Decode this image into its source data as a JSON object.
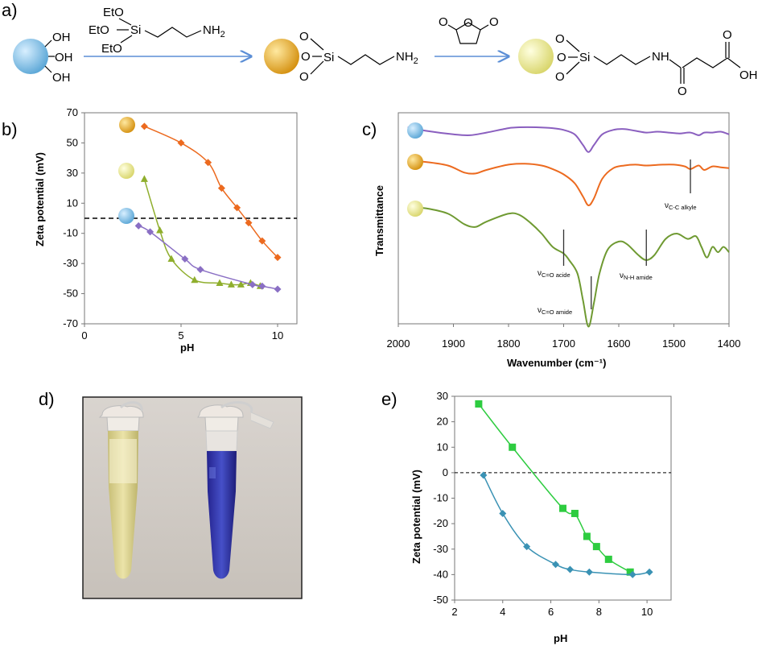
{
  "panel_labels": {
    "a": "a)",
    "b": "b)",
    "c": "c)",
    "d": "d)",
    "e": "e)"
  },
  "scheme": {
    "oh": "OH",
    "reagent_aptes": {
      "eto": "EtO",
      "si": "Si",
      "nh2": "NH",
      "sub2": "2"
    },
    "intermediate": {
      "o": "O",
      "si": "Si",
      "nh2": "NH",
      "sub2": "2"
    },
    "reagent_anhydride": {
      "o": "O"
    },
    "product": {
      "o": "O",
      "si": "Si",
      "nh": "NH",
      "oh": "OH"
    }
  },
  "photo_description": "",
  "colors": {
    "bare_particle": "#7bbde6",
    "amine_particle": "#e0a31e",
    "carboxyl_particle": "#ece98a",
    "arrow": "#5b8ed6",
    "orange_series": "#ec6a1f",
    "green_series": "#8fae2d",
    "purple_series": "#8a6fc4",
    "ftir_purple": "#8a5fbf",
    "ftir_orange": "#ec6a1f",
    "ftir_green": "#6f9a32",
    "e_green": "#2ecc40",
    "e_teal": "#3a92b4"
  },
  "chart_data": [
    {
      "id": "b",
      "type": "scatter",
      "xlabel": "pH",
      "ylabel": "Zeta potential (mV)",
      "xlim": [
        0,
        11
      ],
      "ylim": [
        -70,
        70
      ],
      "xticks": [
        0,
        5,
        10
      ],
      "yticks": [
        70,
        50,
        30,
        10,
        -10,
        -30,
        -50,
        -70
      ],
      "zero_line": "dashed",
      "legend": "particle icons at left of each series",
      "series": [
        {
          "marker": "diamond",
          "color": "#ec6a1f",
          "x": [
            3.1,
            5.0,
            6.4,
            7.1,
            7.9,
            8.5,
            9.2,
            10.0
          ],
          "y": [
            61,
            50,
            37,
            20,
            7,
            -3,
            -15,
            -26
          ]
        },
        {
          "marker": "triangle",
          "color": "#8fae2d",
          "x": [
            3.1,
            3.9,
            4.5,
            5.7,
            7.0,
            7.6,
            8.1,
            8.6,
            9.1
          ],
          "y": [
            26,
            -8,
            -27,
            -41,
            -43,
            -44,
            -44,
            -43,
            -45
          ]
        },
        {
          "marker": "diamond",
          "color": "#8a6fc4",
          "x": [
            2.8,
            3.4,
            5.2,
            6.0,
            8.7,
            9.2,
            10.0
          ],
          "y": [
            -5,
            -9,
            -27,
            -34,
            -44,
            -45,
            -47
          ]
        }
      ]
    },
    {
      "id": "c",
      "type": "line",
      "xlabel": "Wavenumber (cm⁻¹)",
      "ylabel": "Transmittance",
      "xlim": [
        2000,
        1400
      ],
      "xticks": [
        2000,
        1900,
        1800,
        1700,
        1600,
        1500,
        1400
      ],
      "series": [
        {
          "color": "#8a5fbf",
          "points": [
            [
              1983,
              0.0
            ],
            [
              1950,
              -0.04
            ],
            [
              1900,
              -0.08
            ],
            [
              1870,
              -0.09
            ],
            [
              1840,
              -0.06
            ],
            [
              1800,
              -0.01
            ],
            [
              1780,
              0.0
            ],
            [
              1750,
              0.0
            ],
            [
              1720,
              -0.01
            ],
            [
              1700,
              -0.03
            ],
            [
              1680,
              -0.08
            ],
            [
              1665,
              -0.2
            ],
            [
              1655,
              -0.28
            ],
            [
              1645,
              -0.2
            ],
            [
              1630,
              -0.08
            ],
            [
              1610,
              -0.03
            ],
            [
              1590,
              -0.02
            ],
            [
              1570,
              -0.04
            ],
            [
              1550,
              -0.06
            ],
            [
              1530,
              -0.05
            ],
            [
              1510,
              -0.06
            ],
            [
              1490,
              -0.07
            ],
            [
              1470,
              -0.06
            ],
            [
              1455,
              -0.09
            ],
            [
              1445,
              -0.06
            ],
            [
              1430,
              -0.06
            ],
            [
              1415,
              -0.05
            ],
            [
              1400,
              -0.08
            ]
          ]
        },
        {
          "color": "#ec6a1f",
          "points": [
            [
              1983,
              0.0
            ],
            [
              1950,
              -0.01
            ],
            [
              1910,
              -0.05
            ],
            [
              1880,
              -0.13
            ],
            [
              1860,
              -0.14
            ],
            [
              1840,
              -0.1
            ],
            [
              1800,
              -0.04
            ],
            [
              1770,
              -0.03
            ],
            [
              1740,
              -0.05
            ],
            [
              1720,
              -0.09
            ],
            [
              1700,
              -0.15
            ],
            [
              1680,
              -0.25
            ],
            [
              1665,
              -0.4
            ],
            [
              1655,
              -0.5
            ],
            [
              1645,
              -0.42
            ],
            [
              1630,
              -0.2
            ],
            [
              1610,
              -0.08
            ],
            [
              1590,
              -0.05
            ],
            [
              1570,
              -0.04
            ],
            [
              1550,
              -0.05
            ],
            [
              1520,
              -0.04
            ],
            [
              1500,
              -0.04
            ],
            [
              1480,
              -0.06
            ],
            [
              1470,
              -0.09
            ],
            [
              1455,
              -0.05
            ],
            [
              1445,
              -0.1
            ],
            [
              1430,
              -0.06
            ],
            [
              1415,
              -0.07
            ],
            [
              1400,
              -0.08
            ]
          ]
        },
        {
          "color": "#6f9a32",
          "points": [
            [
              1983,
              0.0
            ],
            [
              1950,
              -0.01
            ],
            [
              1910,
              -0.05
            ],
            [
              1880,
              -0.13
            ],
            [
              1860,
              -0.15
            ],
            [
              1840,
              -0.11
            ],
            [
              1800,
              -0.05
            ],
            [
              1780,
              -0.06
            ],
            [
              1760,
              -0.12
            ],
            [
              1740,
              -0.2
            ],
            [
              1720,
              -0.3
            ],
            [
              1700,
              -0.35
            ],
            [
              1690,
              -0.4
            ],
            [
              1675,
              -0.5
            ],
            [
              1665,
              -0.7
            ],
            [
              1655,
              -0.9
            ],
            [
              1645,
              -0.72
            ],
            [
              1635,
              -0.5
            ],
            [
              1620,
              -0.32
            ],
            [
              1600,
              -0.26
            ],
            [
              1585,
              -0.28
            ],
            [
              1565,
              -0.36
            ],
            [
              1550,
              -0.4
            ],
            [
              1535,
              -0.36
            ],
            [
              1515,
              -0.24
            ],
            [
              1495,
              -0.2
            ],
            [
              1475,
              -0.24
            ],
            [
              1460,
              -0.22
            ],
            [
              1450,
              -0.3
            ],
            [
              1440,
              -0.38
            ],
            [
              1430,
              -0.3
            ],
            [
              1420,
              -0.34
            ],
            [
              1410,
              -0.3
            ],
            [
              1400,
              -0.34
            ]
          ]
        }
      ],
      "annotations": [
        {
          "main": "ν",
          "sub": "C=O acide",
          "x": 1700
        },
        {
          "main": "ν",
          "sub": "C=O amide",
          "x": 1650
        },
        {
          "main": "ν",
          "sub": "N-H amide",
          "x": 1550
        },
        {
          "main": "ν",
          "sub": "C-C alkyle",
          "x": 1470
        }
      ]
    },
    {
      "id": "e",
      "type": "scatter",
      "xlabel": "pH",
      "ylabel": "Zeta potential  (mV)",
      "xlim": [
        2,
        11
      ],
      "ylim": [
        -50,
        30
      ],
      "xticks": [
        2,
        4,
        6,
        8,
        10
      ],
      "yticks": [
        30,
        20,
        10,
        0,
        -10,
        -20,
        -30,
        -40,
        -50
      ],
      "zero_line": "dashed",
      "series": [
        {
          "marker": "square",
          "color": "#2ecc40",
          "x": [
            3.0,
            4.4,
            6.5,
            7.0,
            7.5,
            7.9,
            8.4,
            9.3
          ],
          "y": [
            27,
            10,
            -14,
            -16,
            -25,
            -29,
            -34,
            -39
          ]
        },
        {
          "marker": "diamond",
          "color": "#3a92b4",
          "x": [
            3.2,
            4.0,
            5.0,
            6.2,
            6.8,
            7.6,
            9.4,
            10.1
          ],
          "y": [
            -1,
            -16,
            -29,
            -36,
            -38,
            -39,
            -40,
            -39
          ]
        }
      ]
    }
  ]
}
